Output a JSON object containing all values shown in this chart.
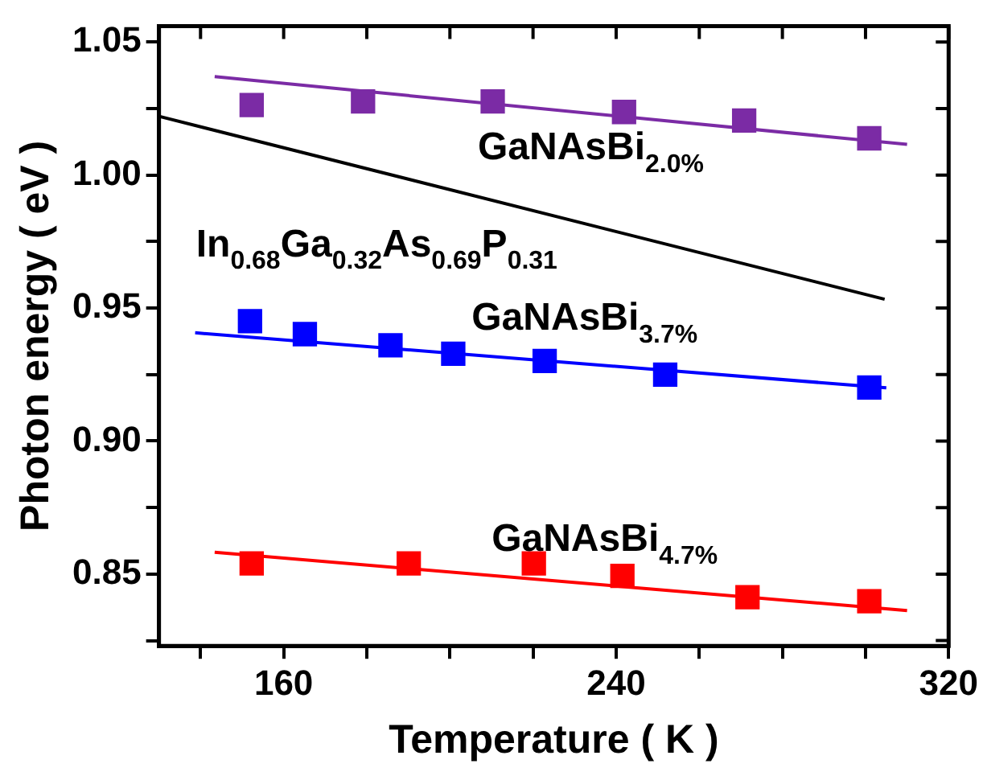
{
  "chart_data": {
    "type": "scatter",
    "xlabel": "Temperature ( K )",
    "ylabel": "Photon energy ( eV )",
    "xlim": [
      130,
      320
    ],
    "ylim": [
      0.823,
      1.056
    ],
    "xticks": [
      {
        "value": 140,
        "label": null
      },
      160,
      {
        "value": 180,
        "label": null
      },
      {
        "value": 200,
        "label": null
      },
      {
        "value": 220,
        "label": null
      },
      240,
      {
        "value": 260,
        "label": null
      },
      {
        "value": 280,
        "label": null
      },
      {
        "value": 300,
        "label": null
      },
      320
    ],
    "yticks": [
      {
        "value": 0.825,
        "label": null
      },
      0.85,
      {
        "value": 0.875,
        "label": null
      },
      {
        "value": 0.9,
        "label": "0.90"
      },
      {
        "value": 0.925,
        "label": null
      },
      0.95,
      {
        "value": 0.975,
        "label": null
      },
      {
        "value": 1.0,
        "label": "1.00"
      },
      {
        "value": 1.025,
        "label": null
      },
      1.05
    ],
    "grid": false,
    "legend": false,
    "marker": "square",
    "series": [
      {
        "color": "#7b2ba5",
        "x": [
          152.3,
          179.1,
          210.3,
          241.9,
          270.8,
          300.9
        ],
        "values": [
          1.0263,
          1.0277,
          1.0277,
          1.0237,
          1.0205,
          1.0138
        ]
      },
      {
        "type": "line",
        "name": "GaNAsBi$_{2.0%}$",
        "color": "#7b2ba5",
        "x": [
          143.4,
          310.0
        ],
        "values": [
          1.037,
          1.0115
        ],
        "marker": "none"
      },
      {
        "type": "line",
        "name": "In$_{0.68}$Ga$_{0.32}$As$_{0.69}$P$_{0.31}$",
        "color": "#000000",
        "x": [
          130.2,
          304.6
        ],
        "values": [
          1.022,
          0.9533
        ],
        "marker": "none"
      },
      {
        "color": "#0000ff",
        "x": [
          151.9,
          165.1,
          185.7,
          200.8,
          222.8,
          251.8,
          300.9
        ],
        "values": [
          0.9451,
          0.9402,
          0.936,
          0.9328,
          0.9301,
          0.925,
          0.9201
        ]
      },
      {
        "type": "line",
        "name": "GaNAsBi$_{3.7%}$",
        "color": "#0000ff",
        "x": [
          138.7,
          305.0
        ],
        "values": [
          0.9407,
          0.92
        ],
        "marker": "none"
      },
      {
        "color": "#ff0000",
        "x": [
          152.3,
          190.1,
          220.2,
          241.5,
          271.6,
          300.9
        ],
        "values": [
          0.854,
          0.854,
          0.854,
          0.8493,
          0.8413,
          0.8398
        ]
      },
      {
        "type": "line",
        "name": "GaNAsBi$_{4.7%}$",
        "color": "#ff0000",
        "x": [
          143.4,
          310.0
        ],
        "values": [
          0.8582,
          0.8363
        ],
        "marker": "none"
      }
    ]
  }
}
